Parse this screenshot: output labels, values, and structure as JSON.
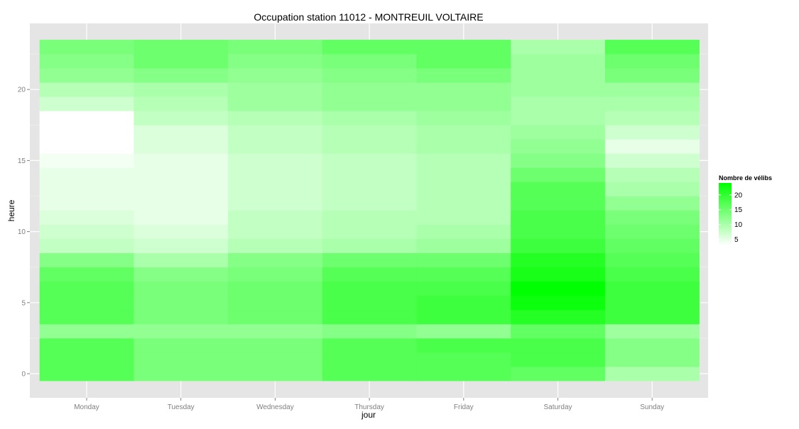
{
  "chart_data": {
    "type": "heatmap",
    "title": "Occupation station 11012 - MONTREUIL VOLTAIRE",
    "xlabel": "jour",
    "ylabel": "heure",
    "x_categories": [
      "Monday",
      "Tuesday",
      "Wednesday",
      "Thursday",
      "Friday",
      "Saturday",
      "Sunday"
    ],
    "y_range": [
      -0.5,
      23.5
    ],
    "y_ticks": [
      0,
      5,
      10,
      15,
      20
    ],
    "grid": true,
    "legend": {
      "title": "Nombre de vélibs",
      "position": "right",
      "ticks": [
        5,
        10,
        15,
        20
      ],
      "range": [
        3,
        24
      ],
      "low_color": "#ffffff",
      "high_color": "#00ff00"
    },
    "hours": [
      0,
      1,
      2,
      3,
      4,
      5,
      6,
      7,
      8,
      9,
      10,
      11,
      12,
      13,
      14,
      15,
      16,
      17,
      18,
      19,
      20,
      21,
      22,
      23
    ],
    "values": {
      "Monday": [
        17,
        17,
        17,
        12,
        17,
        17,
        17,
        16,
        13,
        8,
        7,
        6,
        5,
        5,
        5,
        4,
        3,
        3,
        3,
        7,
        9,
        12,
        13,
        14
      ],
      "Tuesday": [
        14,
        14,
        14,
        12,
        14,
        14,
        14,
        13,
        10,
        7,
        6,
        5,
        5,
        5,
        5,
        5,
        6,
        6,
        8,
        9,
        10,
        13,
        15,
        15
      ],
      "Wednesday": [
        14,
        14,
        14,
        12,
        15,
        15,
        15,
        14,
        13,
        9,
        8,
        8,
        7,
        7,
        7,
        7,
        8,
        8,
        9,
        11,
        11,
        12,
        13,
        14
      ],
      "Thursday": [
        17,
        17,
        17,
        13,
        18,
        18,
        18,
        17,
        15,
        10,
        9,
        9,
        8,
        8,
        8,
        8,
        9,
        9,
        10,
        12,
        12,
        13,
        14,
        16
      ],
      "Friday": [
        17,
        17,
        18,
        12,
        19,
        19,
        18,
        17,
        15,
        11,
        10,
        9,
        9,
        9,
        9,
        9,
        10,
        10,
        11,
        12,
        12,
        14,
        16,
        16
      ],
      "Saturday": [
        16,
        18,
        18,
        16,
        21,
        23,
        24,
        22,
        21,
        19,
        18,
        18,
        17,
        17,
        15,
        13,
        12,
        11,
        10,
        10,
        11,
        11,
        11,
        10
      ],
      "Sunday": [
        10,
        13,
        13,
        11,
        19,
        19,
        19,
        18,
        17,
        16,
        15,
        14,
        12,
        10,
        9,
        7,
        5,
        7,
        9,
        10,
        11,
        14,
        15,
        17
      ]
    }
  }
}
